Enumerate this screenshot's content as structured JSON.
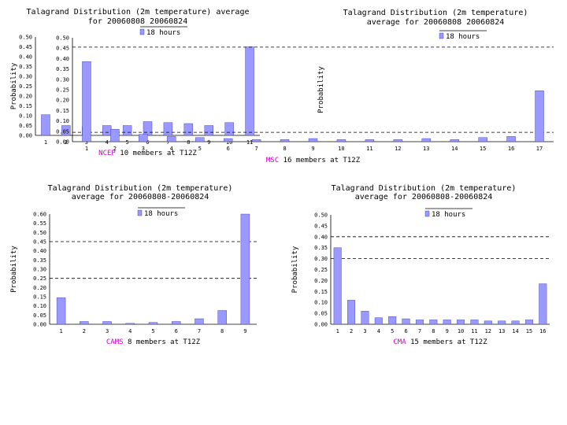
{
  "chart_data": [
    {
      "type": "bar",
      "title": [
        "Talagrand Distribution (2m temperature) average",
        "for 20060808 20060824"
      ],
      "ylabel": "Probability",
      "xlabel_model": "NCEP",
      "xlabel_rest": " 10 members at T12Z",
      "legend": "18 hours",
      "categories": [
        "1",
        "2",
        "3",
        "4",
        "5",
        "6",
        "7",
        "8",
        "9",
        "10",
        "11"
      ],
      "values": [
        0.105,
        0.05,
        0.045,
        0.05,
        0.05,
        0.07,
        0.065,
        0.06,
        0.05,
        0.065,
        0.45
      ],
      "ylim": [
        0,
        0.5
      ],
      "yticks": [
        "0.00",
        "0.05",
        "0.10",
        "0.15",
        "0.20",
        "0.25",
        "0.30",
        "0.35",
        "0.40",
        "0.45",
        "0.50"
      ],
      "ref_lines": [],
      "color": "#9999ff"
    },
    {
      "type": "bar",
      "title": [
        "Talagrand Distribution (2m temperature)",
        "average for 20060808 20060824"
      ],
      "ylabel": "Probability",
      "xlabel_model": "MSC",
      "xlabel_rest": " 16 members at T12Z",
      "legend": "18 hours",
      "categories": [
        "1",
        "2",
        "3",
        "4",
        "5",
        "6",
        "7",
        "8",
        "9",
        "10",
        "11",
        "12",
        "13",
        "14",
        "15",
        "16",
        "17"
      ],
      "values": [
        0.385,
        0.06,
        0.035,
        0.025,
        0.02,
        0.015,
        0.01,
        0.01,
        0.015,
        0.01,
        0.01,
        0.01,
        0.015,
        0.01,
        0.02,
        0.025,
        0.245
      ],
      "ylim": [
        0,
        0.5
      ],
      "yticks": [
        "0.00",
        "0.05",
        "0.10",
        "0.15",
        "0.20",
        "0.25",
        "0.30",
        "0.35",
        "0.40",
        "0.45",
        "0.50"
      ],
      "ref_lines": [
        0.045,
        0.455
      ],
      "color": "#9999ff"
    },
    {
      "type": "bar",
      "title": [
        "Talagrand Distribution (2m temperature)",
        "average for 20060808-20060824"
      ],
      "ylabel": "Probability",
      "xlabel_model": "CAMS",
      "xlabel_rest": " 8 members at T12Z",
      "legend": "18 hours",
      "categories": [
        "1",
        "2",
        "3",
        "4",
        "5",
        "6",
        "7",
        "8",
        "9"
      ],
      "values": [
        0.145,
        0.015,
        0.015,
        0.005,
        0.01,
        0.015,
        0.03,
        0.075,
        0.6
      ],
      "ylim": [
        0,
        0.6
      ],
      "yticks": [
        "0.00",
        "0.05",
        "0.10",
        "0.15",
        "0.20",
        "0.25",
        "0.30",
        "0.35",
        "0.40",
        "0.45",
        "0.50",
        "0.55",
        "0.60"
      ],
      "ref_lines": [
        0.25,
        0.45
      ],
      "color": "#9999ff"
    },
    {
      "type": "bar",
      "title": [
        "Talagrand Distribution (2m temperature)",
        "average for 20060808-20060824"
      ],
      "ylabel": "Probability",
      "xlabel_model": "CMA",
      "xlabel_rest": " 15 members at T12Z",
      "legend": "18 hours",
      "categories": [
        "1",
        "2",
        "3",
        "4",
        "5",
        "6",
        "7",
        "8",
        "9",
        "10",
        "11",
        "12",
        "13",
        "14",
        "15",
        "16"
      ],
      "values": [
        0.35,
        0.11,
        0.06,
        0.03,
        0.035,
        0.025,
        0.02,
        0.02,
        0.02,
        0.02,
        0.02,
        0.015,
        0.015,
        0.015,
        0.02,
        0.185
      ],
      "ylim": [
        0,
        0.5
      ],
      "yticks": [
        "0.00",
        "0.05",
        "0.10",
        "0.15",
        "0.20",
        "0.25",
        "0.30",
        "0.35",
        "0.40",
        "0.45",
        "0.50"
      ],
      "ref_lines": [
        0.3,
        0.4
      ],
      "color": "#9999ff"
    }
  ]
}
